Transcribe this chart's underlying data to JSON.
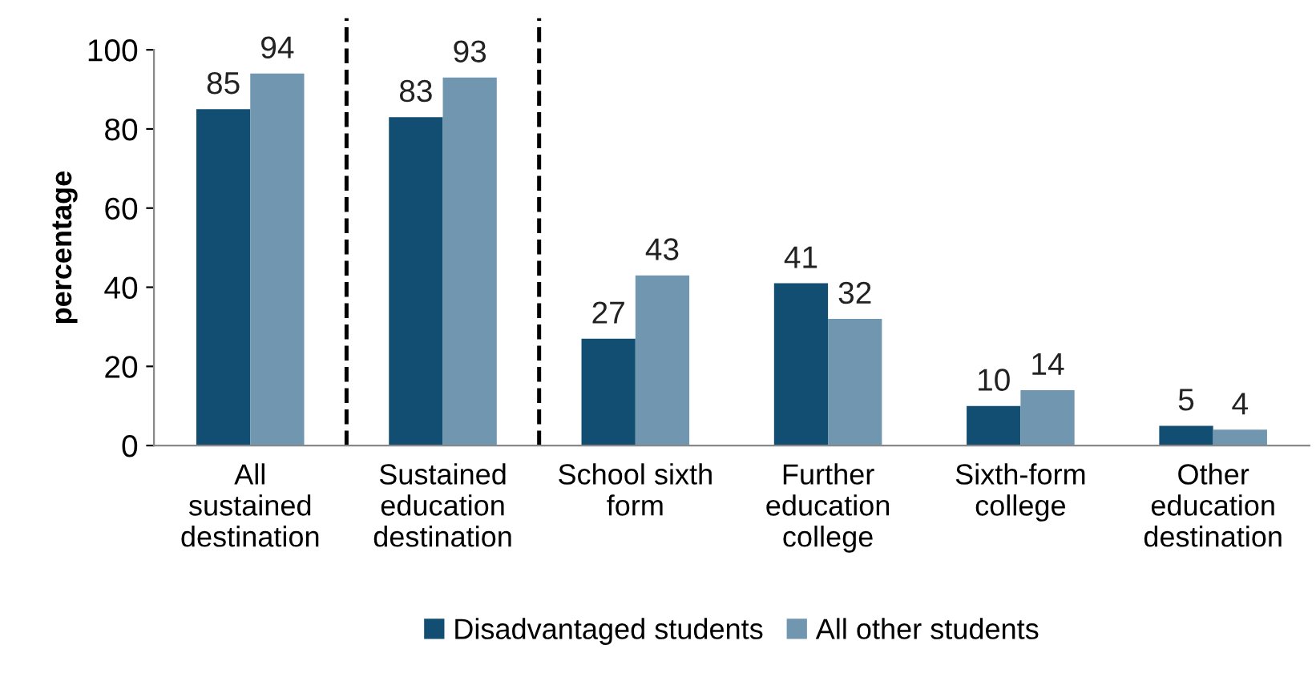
{
  "chart_data": {
    "type": "bar",
    "ylabel": "percentage",
    "categories": [
      "All sustained destination",
      "Sustained education destination",
      "School sixth form",
      "Further education college",
      "Sixth-form college",
      "Other education destination"
    ],
    "series": [
      {
        "name": "Disadvantaged students",
        "color": "#124e72",
        "values": [
          85,
          83,
          27,
          41,
          10,
          5
        ]
      },
      {
        "name": "All other students",
        "color": "#7096b0",
        "values": [
          94,
          93,
          43,
          32,
          14,
          4
        ]
      }
    ],
    "ylim": [
      0,
      100
    ],
    "yticks": [
      0,
      20,
      40,
      60,
      80,
      100
    ],
    "grid": false,
    "legend": "bottom",
    "data_labels": true
  }
}
